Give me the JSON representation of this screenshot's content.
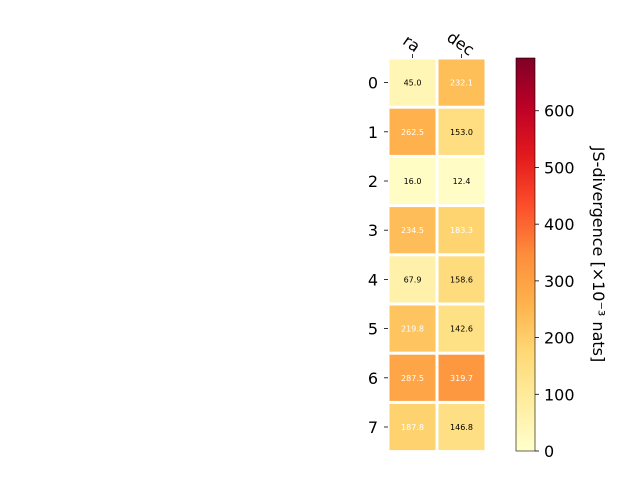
{
  "chart_data": {
    "type": "heatmap",
    "columns": [
      "ra",
      "dec"
    ],
    "rows": [
      "0",
      "1",
      "2",
      "3",
      "4",
      "5",
      "6",
      "7"
    ],
    "values": [
      [
        45.0,
        232.1
      ],
      [
        262.5,
        153.0
      ],
      [
        16.0,
        12.4
      ],
      [
        234.5,
        183.3
      ],
      [
        67.9,
        158.6
      ],
      [
        219.8,
        142.6
      ],
      [
        287.5,
        319.7
      ],
      [
        187.8,
        146.8
      ]
    ],
    "value_labels": [
      [
        "45.0",
        "232.1"
      ],
      [
        "262.5",
        "153.0"
      ],
      [
        "16.0",
        "12.4"
      ],
      [
        "234.5",
        "183.3"
      ],
      [
        "67.9",
        "158.6"
      ],
      [
        "219.8",
        "142.6"
      ],
      [
        "287.5",
        "319.7"
      ],
      [
        "187.8",
        "146.8"
      ]
    ],
    "colorbar": {
      "label": "JS-divergence [×10⁻³ nats]",
      "vmin": 0,
      "vmax": 693,
      "ticks": [
        0,
        100,
        200,
        300,
        400,
        500,
        600
      ],
      "tick_labels": [
        "0",
        "100",
        "200",
        "300",
        "400",
        "500",
        "600"
      ],
      "colormap": "YlOrRd"
    },
    "title": "",
    "grid": false
  }
}
